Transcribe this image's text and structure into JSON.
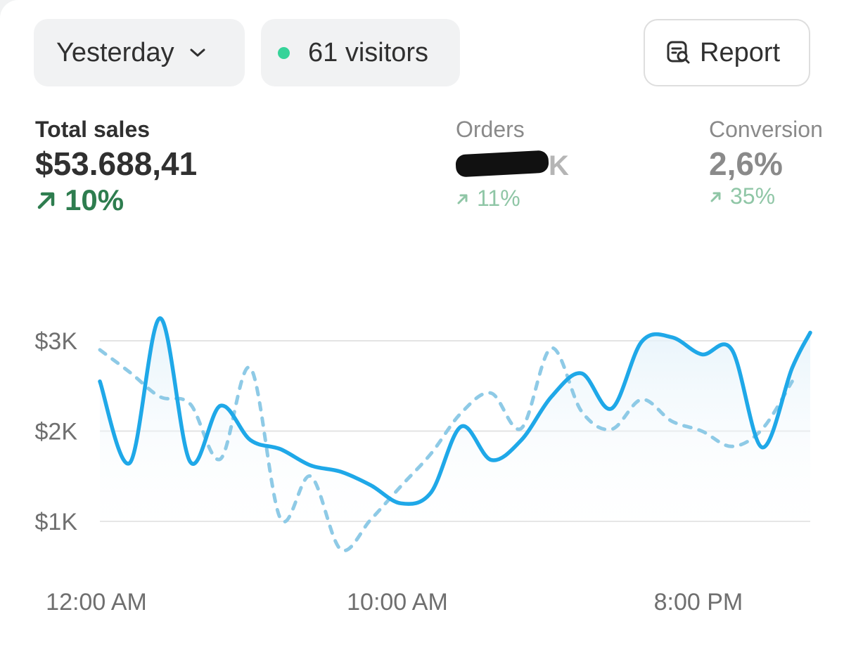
{
  "header": {
    "date_filter": {
      "label": "Yesterday",
      "icon": "chevron-down-icon"
    },
    "visitors": {
      "label": "61 visitors",
      "status_color": "#36d399"
    },
    "report_button": {
      "label": "Report",
      "icon": "report-search-icon"
    }
  },
  "metrics": {
    "total_sales": {
      "label": "Total sales",
      "value": "$53.688,41",
      "delta": "10%",
      "delta_icon": "arrow-up-right-icon",
      "color": "#2e7d4f"
    },
    "orders": {
      "label": "Orders",
      "value": "K",
      "delta": "11%",
      "delta_icon": "arrow-up-right-icon",
      "value_redacted": true
    },
    "conversion": {
      "label": "Conversion",
      "value": "2,6%",
      "delta": "35%",
      "delta_icon": "arrow-up-right-icon"
    }
  },
  "chart_data": {
    "type": "line",
    "x_ticks": [
      "12:00 AM",
      "10:00 AM",
      "8:00 PM"
    ],
    "y_ticks": [
      "$1K",
      "$2K",
      "$3K"
    ],
    "ylim": [
      1000,
      3000
    ],
    "grid": true,
    "x_range_hours": [
      0,
      23.6
    ],
    "series": [
      {
        "style": "solid",
        "color": "#1fa8e8",
        "fill": true,
        "points": [
          [
            0,
            2550
          ],
          [
            1,
            1650
          ],
          [
            2,
            3250
          ],
          [
            3,
            1660
          ],
          [
            4,
            2280
          ],
          [
            5,
            1900
          ],
          [
            6,
            1800
          ],
          [
            7,
            1620
          ],
          [
            8,
            1550
          ],
          [
            9,
            1400
          ],
          [
            10,
            1200
          ],
          [
            11,
            1320
          ],
          [
            12,
            2050
          ],
          [
            13,
            1680
          ],
          [
            14,
            1900
          ],
          [
            15,
            2380
          ],
          [
            16,
            2640
          ],
          [
            17,
            2250
          ],
          [
            18,
            2990
          ],
          [
            19,
            3040
          ],
          [
            20,
            2850
          ],
          [
            21,
            2900
          ],
          [
            22,
            1820
          ],
          [
            23,
            2700
          ],
          [
            23.6,
            3090
          ]
        ]
      },
      {
        "style": "dashed",
        "color": "#8ecae6",
        "fill": false,
        "points": [
          [
            0,
            2900
          ],
          [
            1,
            2650
          ],
          [
            2,
            2380
          ],
          [
            3,
            2300
          ],
          [
            4,
            1690
          ],
          [
            5,
            2700
          ],
          [
            6,
            1030
          ],
          [
            7,
            1500
          ],
          [
            8,
            690
          ],
          [
            9,
            1020
          ],
          [
            10,
            1390
          ],
          [
            11,
            1750
          ],
          [
            12,
            2200
          ],
          [
            13,
            2420
          ],
          [
            14,
            2030
          ],
          [
            15,
            2920
          ],
          [
            16,
            2220
          ],
          [
            17,
            2020
          ],
          [
            18,
            2350
          ],
          [
            19,
            2110
          ],
          [
            20,
            2000
          ],
          [
            21,
            1830
          ],
          [
            22,
            2020
          ],
          [
            23,
            2550
          ]
        ]
      }
    ]
  }
}
